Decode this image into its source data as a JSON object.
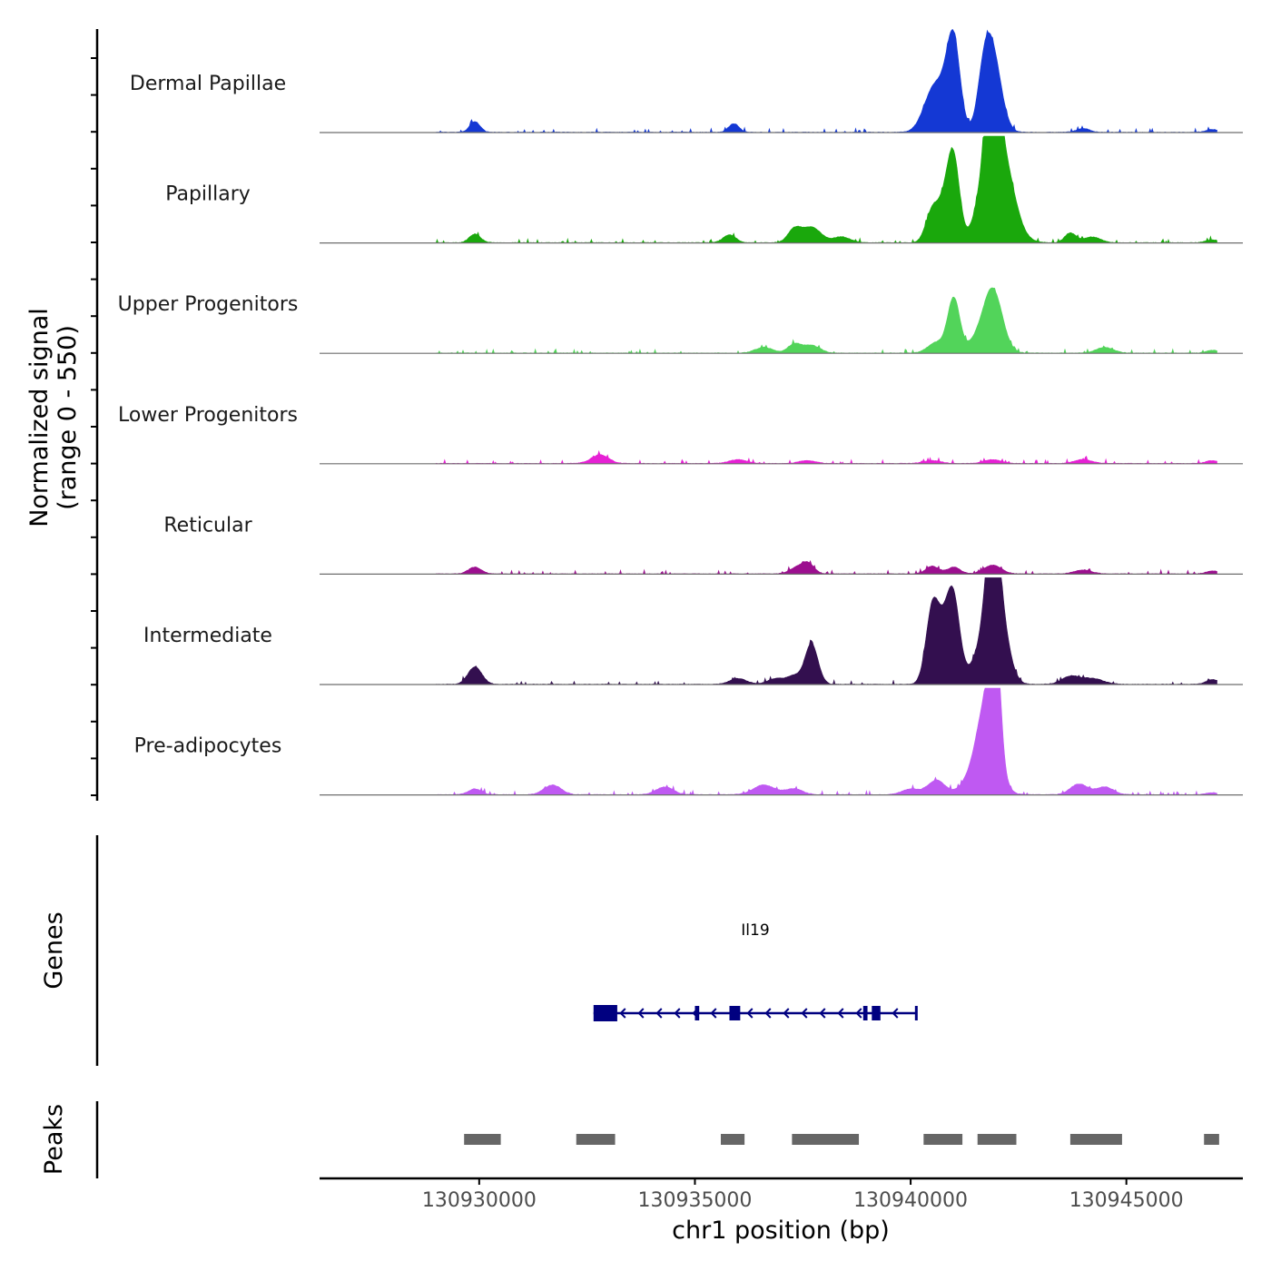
{
  "chart_data": {
    "type": "area",
    "title": "",
    "ylabel": "Normalized signal\n(range 0 - 550)",
    "ylim": [
      0,
      550
    ],
    "xlabel": "chr1 position (bp)",
    "xlim": [
      126300,
      147700
    ],
    "x_axis_offset": 130800000,
    "xticks": [
      130930000,
      130935000,
      130940000,
      130945000
    ],
    "xtick_labels": [
      "130930000",
      "130935000",
      "130940000",
      "130945000"
    ],
    "tracks": [
      {
        "name": "Dermal Papillae",
        "color": "#1438d4",
        "peaks": [
          [
            129900,
            55,
            120
          ],
          [
            135900,
            45,
            120
          ],
          [
            140500,
            190,
            220
          ],
          [
            141000,
            420,
            150
          ],
          [
            141900,
            390,
            200
          ],
          [
            140800,
            140,
            200
          ],
          [
            141700,
            210,
            150
          ],
          [
            144000,
            20,
            150
          ],
          [
            147000,
            15,
            150
          ]
        ]
      },
      {
        "name": "Papillary",
        "color": "#1aa80c",
        "peaks": [
          [
            129900,
            45,
            130
          ],
          [
            135800,
            40,
            150
          ],
          [
            137300,
            65,
            150
          ],
          [
            137700,
            80,
            220
          ],
          [
            138400,
            30,
            200
          ],
          [
            140500,
            160,
            150
          ],
          [
            140800,
            180,
            160
          ],
          [
            141000,
            390,
            140
          ],
          [
            141700,
            150,
            200
          ],
          [
            141900,
            890,
            120
          ],
          [
            142050,
            520,
            300
          ],
          [
            143700,
            50,
            130
          ],
          [
            144200,
            30,
            200
          ],
          [
            147000,
            15,
            150
          ]
        ]
      },
      {
        "name": "Upper Progenitors",
        "color": "#52d45a",
        "peaks": [
          [
            136600,
            30,
            200
          ],
          [
            137300,
            45,
            150
          ],
          [
            137700,
            40,
            200
          ],
          [
            140600,
            55,
            200
          ],
          [
            141000,
            280,
            140
          ],
          [
            141900,
            330,
            220
          ],
          [
            141500,
            50,
            200
          ],
          [
            144500,
            30,
            200
          ],
          [
            147000,
            15,
            150
          ]
        ]
      },
      {
        "name": "Lower Progenitors",
        "color": "#e620d4",
        "peaks": [
          [
            132800,
            45,
            200
          ],
          [
            136000,
            20,
            200
          ],
          [
            137600,
            15,
            200
          ],
          [
            140500,
            15,
            200
          ],
          [
            141900,
            20,
            200
          ],
          [
            144000,
            20,
            200
          ],
          [
            147000,
            15,
            150
          ]
        ]
      },
      {
        "name": "Reticular",
        "color": "#9c0f8f",
        "peaks": [
          [
            129900,
            35,
            150
          ],
          [
            137600,
            60,
            150
          ],
          [
            137300,
            25,
            150
          ],
          [
            140500,
            40,
            150
          ],
          [
            141000,
            35,
            150
          ],
          [
            141900,
            45,
            200
          ],
          [
            144000,
            20,
            200
          ],
          [
            147000,
            15,
            150
          ]
        ]
      },
      {
        "name": "Intermediate",
        "color": "#330f4f",
        "peaks": [
          [
            129900,
            90,
            160
          ],
          [
            136000,
            30,
            200
          ],
          [
            136900,
            30,
            200
          ],
          [
            137300,
            40,
            150
          ],
          [
            137700,
            210,
            150
          ],
          [
            140500,
            350,
            150
          ],
          [
            140800,
            250,
            200
          ],
          [
            141000,
            330,
            150
          ],
          [
            141900,
            610,
            150
          ],
          [
            141700,
            200,
            250
          ],
          [
            142100,
            260,
            200
          ],
          [
            143700,
            40,
            200
          ],
          [
            144200,
            30,
            250
          ],
          [
            147000,
            25,
            150
          ]
        ]
      },
      {
        "name": "Pre-adipocytes",
        "color": "#bf59f2",
        "peaks": [
          [
            129900,
            30,
            150
          ],
          [
            131700,
            50,
            200
          ],
          [
            134300,
            40,
            200
          ],
          [
            136600,
            50,
            250
          ],
          [
            137300,
            30,
            200
          ],
          [
            140000,
            30,
            200
          ],
          [
            140600,
            75,
            200
          ],
          [
            141300,
            50,
            200
          ],
          [
            141700,
            220,
            200
          ],
          [
            141950,
            660,
            120
          ],
          [
            141800,
            250,
            250
          ],
          [
            143900,
            55,
            200
          ],
          [
            144500,
            40,
            200
          ],
          [
            147000,
            10,
            150
          ]
        ]
      }
    ],
    "genes": [
      {
        "name": "Il19",
        "strand": "-",
        "start": 132650,
        "end": 140150,
        "exons": [
          [
            132650,
            133200
          ],
          [
            135000,
            135100
          ],
          [
            135800,
            136050
          ],
          [
            138900,
            139000
          ],
          [
            139100,
            139300
          ],
          [
            140100,
            140150
          ]
        ],
        "color": "#000080"
      }
    ],
    "peaks_track": {
      "color": "#666666",
      "regions": [
        [
          129650,
          130500
        ],
        [
          132250,
          133150
        ],
        [
          135600,
          136150
        ],
        [
          137250,
          138800
        ],
        [
          140300,
          141200
        ],
        [
          141550,
          142450
        ],
        [
          143700,
          144900
        ],
        [
          146800,
          147150
        ]
      ]
    },
    "panel_labels": {
      "signal": "Normalized signal",
      "signal_range": "(range 0 - 550)",
      "genes": "Genes",
      "peaks": "Peaks"
    }
  }
}
